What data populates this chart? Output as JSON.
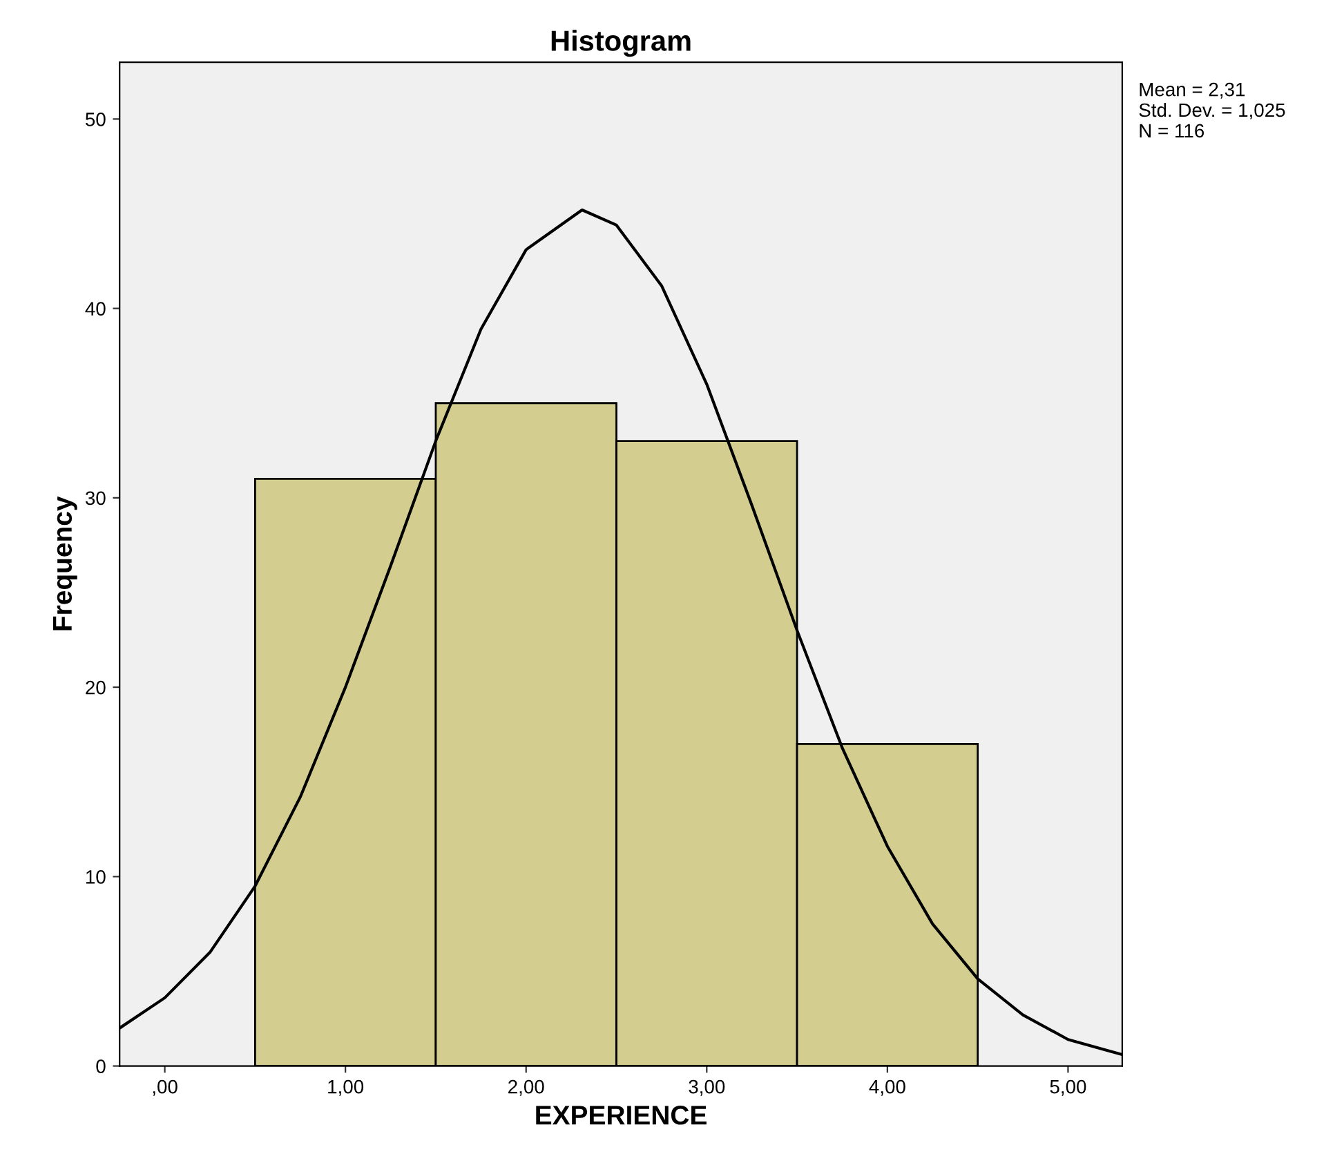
{
  "chart_data": {
    "type": "histogram",
    "title": "Histogram",
    "xlabel": "EXPERIENCE",
    "ylabel": "Frequency",
    "bins": [
      0.5,
      1.5,
      2.5,
      3.5,
      4.5
    ],
    "values": [
      31,
      35,
      33,
      17
    ],
    "color": "#d3ce8f",
    "series": [
      {
        "type": "line",
        "color": "#000000",
        "x": [
          -0.25,
          0,
          0.25,
          0.5,
          0.75,
          1,
          1.25,
          1.5,
          1.75,
          2,
          2.31,
          2.5,
          2.75,
          3,
          3.25,
          3.5,
          3.75,
          4,
          4.25,
          4.5,
          4.75,
          5,
          5.3
        ],
        "values": [
          2.0,
          3.6,
          6.0,
          9.5,
          14.2,
          20.0,
          26.4,
          33.0,
          38.9,
          43.1,
          45.2,
          44.4,
          41.2,
          36.0,
          29.6,
          23.0,
          16.8,
          11.6,
          7.5,
          4.6,
          2.7,
          1.4,
          0.6
        ]
      }
    ],
    "xlim": [
      -0.25,
      5.3
    ],
    "ylim": [
      0,
      53
    ],
    "xticks": [
      {
        "value": 0,
        "label": ",00"
      },
      {
        "value": 1,
        "label": "1,00"
      },
      {
        "value": 2,
        "label": "2,00"
      },
      {
        "value": 3,
        "label": "3,00"
      },
      {
        "value": 4,
        "label": "4,00"
      },
      {
        "value": 5,
        "label": "5,00"
      }
    ],
    "yticks": [
      0,
      10,
      20,
      30,
      40,
      50
    ],
    "annotations": [
      "Mean = 2,31",
      "Std. Dev. = 1,025",
      "N = 116"
    ],
    "grid": false,
    "legend": false
  }
}
